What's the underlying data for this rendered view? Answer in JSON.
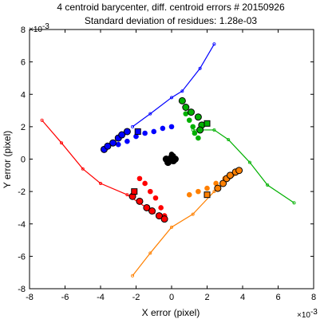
{
  "chart_data": {
    "type": "scatter",
    "title": "4 centroid barycenter, diff. centroid errors # 20150926",
    "subtitle": "Standard deviation of residues: 1.28e-03",
    "xlabel": "X error (pixel)",
    "ylabel": "Y error (pixel)",
    "x_exponent": "×10",
    "x_exponent_power": "-3",
    "y_exponent": "×10",
    "y_exponent_power": "-3",
    "xlim": [
      -8,
      8
    ],
    "ylim": [
      -8,
      8
    ],
    "xticks": [
      -8,
      -6,
      -4,
      -2,
      0,
      2,
      4,
      6,
      8
    ],
    "yticks": [
      -8,
      -6,
      -4,
      -2,
      0,
      2,
      4,
      6,
      8
    ],
    "grid": false,
    "series": [
      {
        "color": "#0000ff",
        "trail": [
          [
            -2.2,
            2.0
          ],
          [
            -1.2,
            2.8
          ],
          [
            0.0,
            3.8
          ],
          [
            0.6,
            4.2
          ],
          [
            1.6,
            5.6
          ],
          [
            2.4,
            7.1
          ]
        ],
        "markers": [
          [
            -3.8,
            0.6
          ],
          [
            -3.6,
            0.8
          ],
          [
            -3.3,
            1.0
          ],
          [
            -3.0,
            1.3
          ],
          [
            -2.8,
            1.5
          ],
          [
            -2.5,
            1.7
          ]
        ],
        "cloud": [
          [
            -3.0,
            0.9
          ],
          [
            -2.5,
            1.1
          ],
          [
            -2.0,
            1.4
          ],
          [
            -1.5,
            1.6
          ],
          [
            -1.0,
            1.7
          ],
          [
            -0.5,
            1.9
          ],
          [
            0.0,
            2.0
          ]
        ],
        "square": [
          -1.9,
          1.7
        ]
      },
      {
        "color": "#00b000",
        "trail": [
          [
            1.2,
            1.8
          ],
          [
            2.4,
            1.8
          ],
          [
            3.2,
            1.2
          ],
          [
            4.4,
            -0.2
          ],
          [
            5.4,
            -1.6
          ],
          [
            6.9,
            -2.7
          ]
        ],
        "markers": [
          [
            0.6,
            3.6
          ],
          [
            0.8,
            3.2
          ],
          [
            1.1,
            2.9
          ],
          [
            1.5,
            2.6
          ],
          [
            1.7,
            2.1
          ],
          [
            1.6,
            1.8
          ]
        ],
        "cloud": [
          [
            0.8,
            2.8
          ],
          [
            1.0,
            2.4
          ],
          [
            1.2,
            2.0
          ],
          [
            1.3,
            1.6
          ],
          [
            1.5,
            1.3
          ]
        ],
        "square": [
          2.0,
          2.2
        ]
      },
      {
        "color": "#ff0000",
        "trail": [
          [
            -7.3,
            2.4
          ],
          [
            -6.2,
            1.0
          ],
          [
            -5.0,
            -0.6
          ],
          [
            -4.0,
            -1.5
          ],
          [
            -2.5,
            -2.2
          ],
          [
            -1.0,
            -3.3
          ]
        ],
        "markers": [
          [
            -2.2,
            -2.3
          ],
          [
            -1.8,
            -2.6
          ],
          [
            -1.4,
            -3.0
          ],
          [
            -1.1,
            -3.2
          ],
          [
            -0.7,
            -3.5
          ],
          [
            -0.4,
            -3.7
          ]
        ],
        "cloud": [
          [
            -1.8,
            -1.2
          ],
          [
            -1.5,
            -1.5
          ],
          [
            -1.2,
            -2.0
          ],
          [
            -0.9,
            -2.4
          ],
          [
            -0.6,
            -3.0
          ],
          [
            -0.4,
            -3.5
          ]
        ],
        "square": [
          -2.1,
          -2.0
        ]
      },
      {
        "color": "#ff8000",
        "trail": [
          [
            -2.2,
            -7.2
          ],
          [
            -1.2,
            -5.8
          ],
          [
            0.0,
            -4.2
          ],
          [
            1.2,
            -3.4
          ],
          [
            2.4,
            -2.0
          ],
          [
            3.8,
            -0.8
          ]
        ],
        "markers": [
          [
            2.6,
            -1.8
          ],
          [
            2.9,
            -1.5
          ],
          [
            3.1,
            -1.2
          ],
          [
            3.3,
            -1.0
          ],
          [
            3.6,
            -0.8
          ],
          [
            3.8,
            -0.7
          ]
        ],
        "cloud": [
          [
            1.0,
            -2.2
          ],
          [
            1.5,
            -2.0
          ],
          [
            2.0,
            -1.8
          ],
          [
            2.5,
            -1.5
          ],
          [
            3.0,
            -1.2
          ]
        ],
        "square": [
          2.0,
          -2.2
        ]
      },
      {
        "color": "#000000",
        "trail": [],
        "markers": [
          [
            -0.3,
            0.0
          ],
          [
            -0.2,
            -0.2
          ],
          [
            0.0,
            0.1
          ],
          [
            0.1,
            -0.1
          ],
          [
            0.2,
            0.0
          ]
        ],
        "cloud": [
          [
            0.0,
            0.3
          ],
          [
            0.1,
            0.2
          ]
        ],
        "square": null
      }
    ]
  }
}
